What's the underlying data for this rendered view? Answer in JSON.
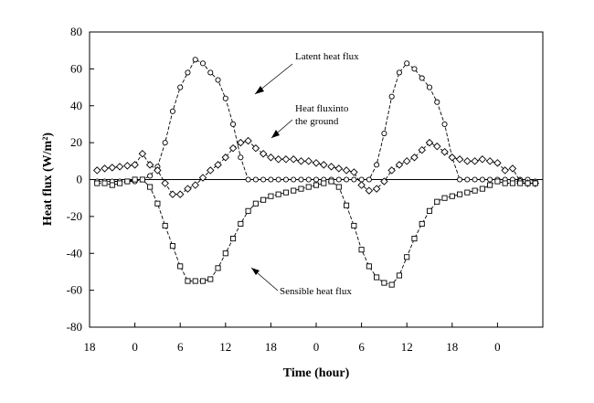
{
  "chart_data": {
    "type": "line",
    "title": "",
    "xlabel": "Time (hour)",
    "ylabel": "Heat flux (W/m²)",
    "ylim": [
      -80,
      80
    ],
    "y_ticks": [
      -80,
      -60,
      -40,
      -20,
      0,
      20,
      40,
      60,
      80
    ],
    "xlim": [
      0,
      60
    ],
    "x_ticks": [
      0,
      6,
      12,
      18,
      24,
      30,
      36,
      42,
      48,
      54
    ],
    "x_tick_labels": [
      "18",
      "0",
      "6",
      "12",
      "18",
      "0",
      "6",
      "12",
      "18",
      "0"
    ],
    "zero_line": true,
    "legend": "none",
    "series": [
      {
        "name": "Latent heat flux",
        "marker": "circle",
        "x": [
          1,
          2,
          3,
          4,
          5,
          6,
          7,
          8,
          9,
          10,
          11,
          12,
          13,
          14,
          15,
          16,
          17,
          18,
          19,
          20,
          21,
          22,
          23,
          24,
          25,
          26,
          27,
          28,
          29,
          30,
          31,
          32,
          33,
          34,
          35,
          36,
          37,
          38,
          39,
          40,
          41,
          42,
          43,
          44,
          45,
          46,
          47,
          48,
          49,
          50,
          51,
          52,
          53,
          54,
          55,
          56,
          57,
          58,
          59
        ],
        "values": [
          -1,
          -1,
          -1,
          -1,
          -1,
          -1,
          0,
          2,
          7,
          20,
          37,
          50,
          58,
          65,
          63,
          58,
          54,
          44,
          30,
          12,
          0,
          0,
          0,
          0,
          0,
          0,
          0,
          0,
          0,
          0,
          0,
          0,
          0,
          0,
          0,
          0,
          0,
          8,
          25,
          45,
          58,
          63,
          60,
          55,
          50,
          42,
          30,
          12,
          0,
          0,
          0,
          0,
          0,
          0,
          0,
          0,
          0,
          0,
          -1
        ]
      },
      {
        "name": "Heat flux into the ground",
        "marker": "diamond",
        "x": [
          1,
          2,
          3,
          4,
          5,
          6,
          7,
          8,
          9,
          10,
          11,
          12,
          13,
          14,
          15,
          16,
          17,
          18,
          19,
          20,
          21,
          22,
          23,
          24,
          25,
          26,
          27,
          28,
          29,
          30,
          31,
          32,
          33,
          34,
          35,
          36,
          37,
          38,
          39,
          40,
          41,
          42,
          43,
          44,
          45,
          46,
          47,
          48,
          49,
          50,
          51,
          52,
          53,
          54,
          55,
          56,
          57,
          58,
          59
        ],
        "values": [
          5,
          6,
          6.5,
          7,
          7.5,
          8,
          14,
          8,
          5,
          -2,
          -8,
          -8,
          -5,
          -3,
          1,
          5,
          8,
          12,
          17,
          20,
          21,
          17,
          14,
          12,
          11,
          11,
          11,
          10,
          10,
          9,
          8,
          7,
          6,
          5,
          4,
          -3,
          -6,
          -5,
          -1,
          5,
          8,
          10,
          12,
          16,
          20,
          18,
          15,
          12,
          11,
          10,
          10,
          11,
          10,
          9,
          5,
          6,
          -1,
          -2,
          -2
        ]
      },
      {
        "name": "Sensible heat flux",
        "marker": "square",
        "x": [
          1,
          2,
          3,
          4,
          5,
          6,
          7,
          8,
          9,
          10,
          11,
          12,
          13,
          14,
          15,
          16,
          17,
          18,
          19,
          20,
          21,
          22,
          23,
          24,
          25,
          26,
          27,
          28,
          29,
          30,
          31,
          32,
          33,
          34,
          35,
          36,
          37,
          38,
          39,
          40,
          41,
          42,
          43,
          44,
          45,
          46,
          47,
          48,
          49,
          50,
          51,
          52,
          53,
          54,
          55,
          56,
          57,
          58,
          59
        ],
        "values": [
          -2,
          -2,
          -3,
          -2,
          -1,
          0,
          0,
          -4,
          -13,
          -25,
          -36,
          -47,
          -55,
          -55,
          -55,
          -54,
          -48,
          -40,
          -32,
          -24,
          -17,
          -13,
          -11,
          -9,
          -8,
          -7,
          -6,
          -5,
          -4,
          -3,
          -2,
          -1,
          -4,
          -14,
          -25,
          -38,
          -47,
          -53,
          -56,
          -57,
          -52,
          -42,
          -32,
          -24,
          -17,
          -12,
          -10,
          -9,
          -8,
          -7,
          -6,
          -5,
          -3,
          -1,
          -2,
          -2,
          -2,
          -2,
          -2
        ]
      }
    ],
    "annotations": [
      {
        "text": "Latent heat flux"
      },
      {
        "text": "Heat fluxinto"
      },
      {
        "text": "the ground"
      },
      {
        "text": "Sensible heat flux"
      }
    ]
  }
}
